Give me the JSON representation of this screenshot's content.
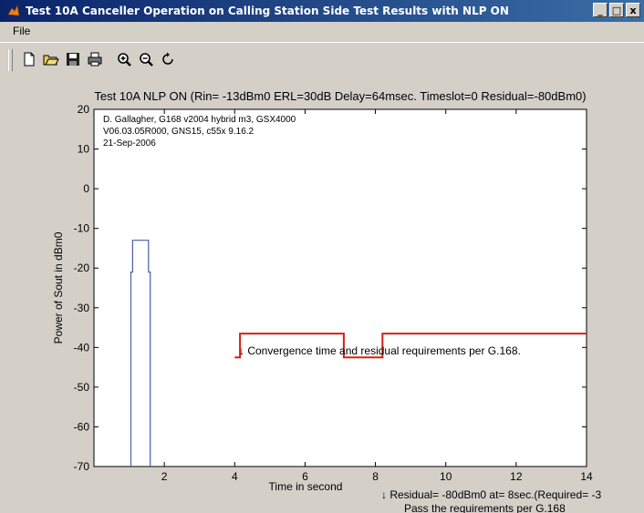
{
  "window": {
    "title": "Test 10A Canceller Operation on Calling Station Side Test Results with NLP ON",
    "minimize_glyph": "_",
    "maximize_glyph": "□",
    "close_glyph": "x"
  },
  "menu": {
    "items": [
      "File"
    ]
  },
  "toolbar": {
    "buttons": [
      "new-file-icon",
      "open-folder-icon",
      "save-icon",
      "print-icon",
      "zoom-in-icon",
      "zoom-out-icon",
      "rotate-icon"
    ]
  },
  "colors": {
    "signal": "#4a5fa8",
    "requirement": "#d42010",
    "titlebar": "#0a246a"
  },
  "chart_data": {
    "type": "line",
    "title": "Test 10A NLP ON (Rin= -13dBm0 ERL=30dB Delay=64msec. Timeslot=0 Residual=-80dBm0)",
    "xlabel": "Time in second",
    "ylabel": "Power of Sout in dBm0",
    "xlim": [
      0,
      14
    ],
    "ylim": [
      -70,
      20
    ],
    "xticks": [
      2,
      4,
      6,
      8,
      10,
      12,
      14
    ],
    "yticks": [
      20,
      10,
      0,
      -10,
      -20,
      -30,
      -40,
      -50,
      -60,
      -70
    ],
    "grid": false,
    "header_lines": [
      "D. Gallagher, G168 v2004 hybrid m3, GSX4000",
      "V06.03.05R000, GNS15, c55x 9.16.2",
      "21-Sep-2006"
    ],
    "series": [
      {
        "x": [
          1.05,
          1.05,
          1.1,
          1.1,
          1.55,
          1.55,
          1.6,
          1.6
        ],
        "y": [
          -70,
          -21,
          -21,
          -13,
          -13,
          -21,
          -21,
          -70
        ]
      },
      {
        "x": [
          4.0,
          4.15,
          4.15,
          7.1,
          7.1,
          8.2,
          8.2,
          14.0
        ],
        "y": [
          -42.5,
          -42.5,
          -36.5,
          -36.5,
          -42.5,
          -42.5,
          -36.5,
          -36.5
        ]
      }
    ],
    "annotations": [
      "↓ Convergence time and residual requirements per G.168.",
      "↓ Residual=  -80dBm0 at= 8sec.(Required=  -3",
      "Pass the requirements per G.168"
    ]
  }
}
